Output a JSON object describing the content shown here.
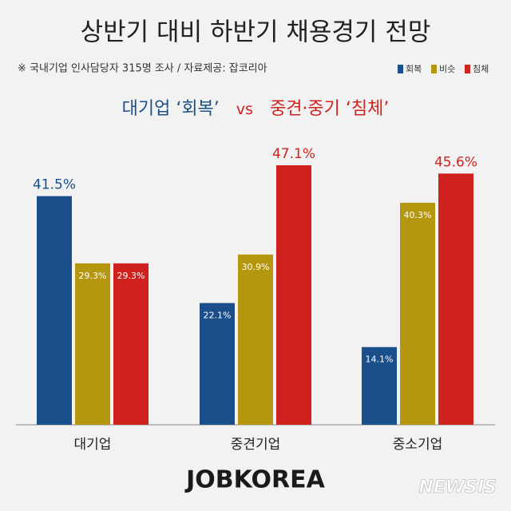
{
  "chart_data": {
    "type": "bar",
    "title": "상반기 대비 하반기 채용경기 전망",
    "subtitle": "※ 국내기업 인사담당자 315명 조사 / 자료제공: 잡코리아",
    "annotation": {
      "left": "대기업 ‘회복’",
      "middle": "vs",
      "right": "중견·중기 ‘침체’"
    },
    "categories": [
      "대기업",
      "중견기업",
      "중소기업"
    ],
    "series": [
      {
        "name": "회복",
        "color": "#1a4f8b",
        "values": [
          41.5,
          22.1,
          14.1
        ],
        "value_labels": [
          "41.5%",
          "22.1%",
          "14.1%"
        ]
      },
      {
        "name": "비슷",
        "color": "#b5960f",
        "values": [
          29.3,
          30.9,
          40.3
        ],
        "value_labels": [
          "29.3%",
          "30.9%",
          "40.3%"
        ]
      },
      {
        "name": "침체",
        "color": "#cf221f",
        "values": [
          29.3,
          47.1,
          45.6
        ],
        "value_labels": [
          "29.3%",
          "47.1%",
          "45.6%"
        ]
      }
    ],
    "legend": "top-right",
    "footer": "JOBKOREA",
    "watermark": "NEWSIS"
  }
}
